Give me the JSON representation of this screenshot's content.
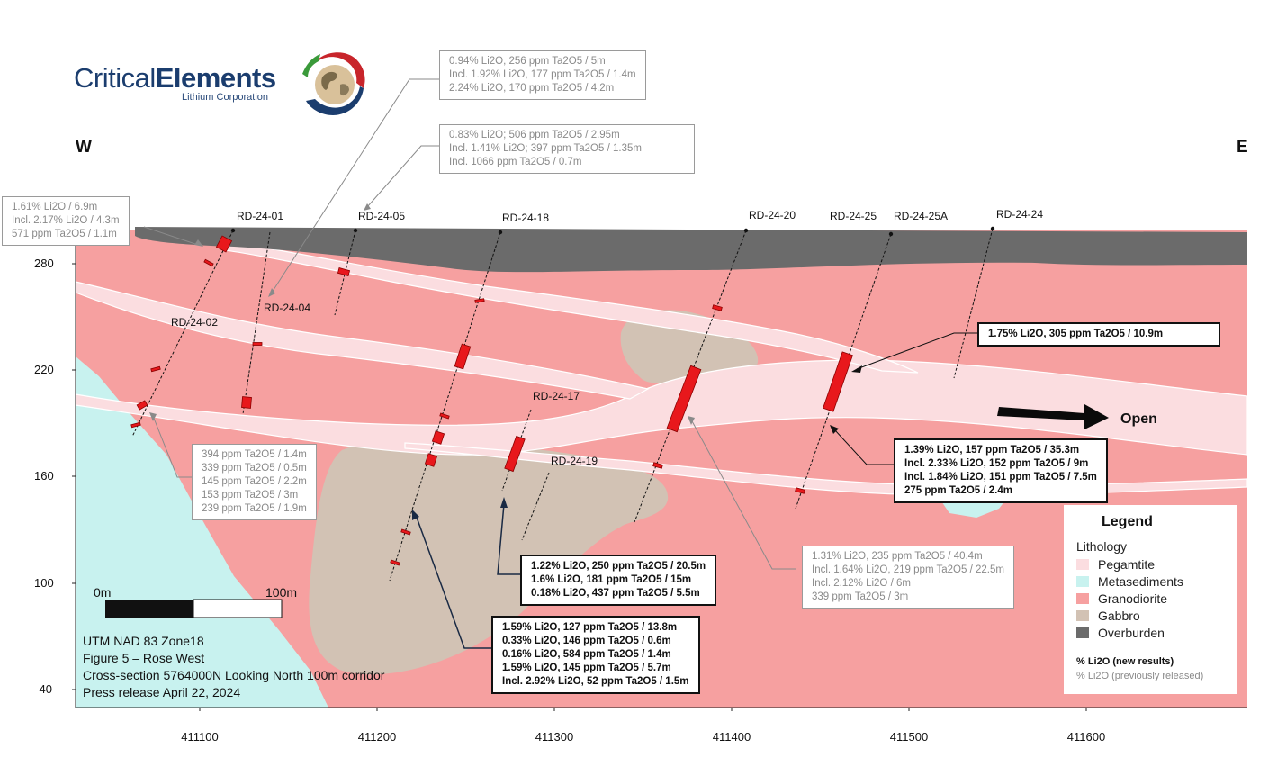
{
  "logo": {
    "brand_light": "Critical",
    "brand_bold": "Elements",
    "subtitle": "Lithium Corporation"
  },
  "compass": {
    "west": "W",
    "east": "E"
  },
  "axes": {
    "y_ticks": [
      "280",
      "220",
      "160",
      "100",
      "40"
    ],
    "x_ticks": [
      "411100",
      "411200",
      "411300",
      "411400",
      "411500",
      "411600"
    ]
  },
  "drillholes": [
    "RD-24-01",
    "RD-24-05",
    "RD-24-18",
    "RD-24-20",
    "RD-24-25",
    "RD-24-25A",
    "RD-24-24",
    "RD-24-04",
    "RD-24-02",
    "RD-24-17",
    "RD-24-19"
  ],
  "annotations": {
    "top1": [
      "0.94% Li2O, 256 ppm Ta2O5 / 5m",
      "Incl. 1.92% Li2O, 177 ppm Ta2O5 / 1.4m",
      "2.24% Li2O, 170 ppm Ta2O5 / 4.2m"
    ],
    "top2": [
      "0.83% Li2O; 506 ppm Ta2O5 /  2.95m",
      "Incl. 1.41% Li2O; 397 ppm Ta2O5 /  1.35m",
      "Incl. 1066 ppm Ta2O5 / 0.7m"
    ],
    "left": [
      "1.61% Li2O / 6.9m",
      "Incl. 2.17% Li2O / 4.3m",
      "571 ppm Ta2O5 / 1.1m"
    ],
    "rd25": [
      "1.75% Li2O, 305 ppm Ta2O5 / 10.9m"
    ],
    "rd25a": [
      "1.39% Li2O, 157 ppm Ta2O5 / 35.3m",
      "Incl. 2.33% Li2O, 152 ppm Ta2O5 / 9m",
      "Incl. 1.84% Li2O, 151 ppm Ta2O5 / 7.5m",
      "275 ppm Ta2O5 / 2.4m"
    ],
    "rd02": [
      "394 ppm Ta2O5 / 1.4m",
      "339 ppm Ta2O5 / 0.5m",
      "145 ppm Ta2O5 / 2.2m",
      "153 ppm Ta2O5 / 3m",
      "239 ppm Ta2O5 / 1.9m"
    ],
    "rd17": [
      "1.22% Li2O, 250 ppm Ta2O5 / 20.5m",
      "1.6% Li2O, 181 ppm Ta2O5 / 15m",
      "0.18% Li2O, 437 ppm Ta2O5 / 5.5m"
    ],
    "rd18": [
      "1.59% Li2O, 127 ppm Ta2O5 / 13.8m",
      "0.33% Li2O, 146 ppm Ta2O5 / 0.6m",
      "0.16% Li2O, 584 ppm Ta2O5 / 1.4m",
      "1.59% Li2O, 145 ppm Ta2O5 / 5.7m",
      "Incl. 2.92% Li2O, 52 ppm Ta2O5 / 1.5m"
    ],
    "rd20": [
      "1.31% Li2O, 235 ppm Ta2O5 / 40.4m",
      "Incl. 1.64% Li2O, 219 ppm Ta2O5 / 22.5m",
      "Incl. 2.12% Li2O / 6m",
      "339 ppm Ta2O5 / 3m"
    ]
  },
  "open_label": "Open",
  "scale": {
    "start": "0m",
    "end": "100m"
  },
  "info": [
    "UTM NAD 83 Zone18",
    "Figure 5 – Rose West",
    "Cross-section 5764000N Looking North 100m corridor",
    "Press release April 22, 2024"
  ],
  "legend": {
    "title": "Legend",
    "heading": "Lithology",
    "items": [
      {
        "label": "Pegamtite",
        "color": "#fbdde0"
      },
      {
        "label": "Metasediments",
        "color": "#c8f2ef"
      },
      {
        "label": "Granodiorite",
        "color": "#f6a0a0"
      },
      {
        "label": "Gabbro",
        "color": "#d2c2b4"
      },
      {
        "label": "Overburden",
        "color": "#6b6b6b"
      }
    ],
    "new_note": "% Li2O (new results)",
    "old_note": "% Li2O (previously released)"
  },
  "colors": {
    "granodiorite": "#f6a0a0",
    "pegmatite": "#fbdde0",
    "metasediments": "#c8f2ef",
    "gabbro": "#d2c2b4",
    "overburden": "#6b6b6b",
    "intercept": "#e8181c"
  }
}
